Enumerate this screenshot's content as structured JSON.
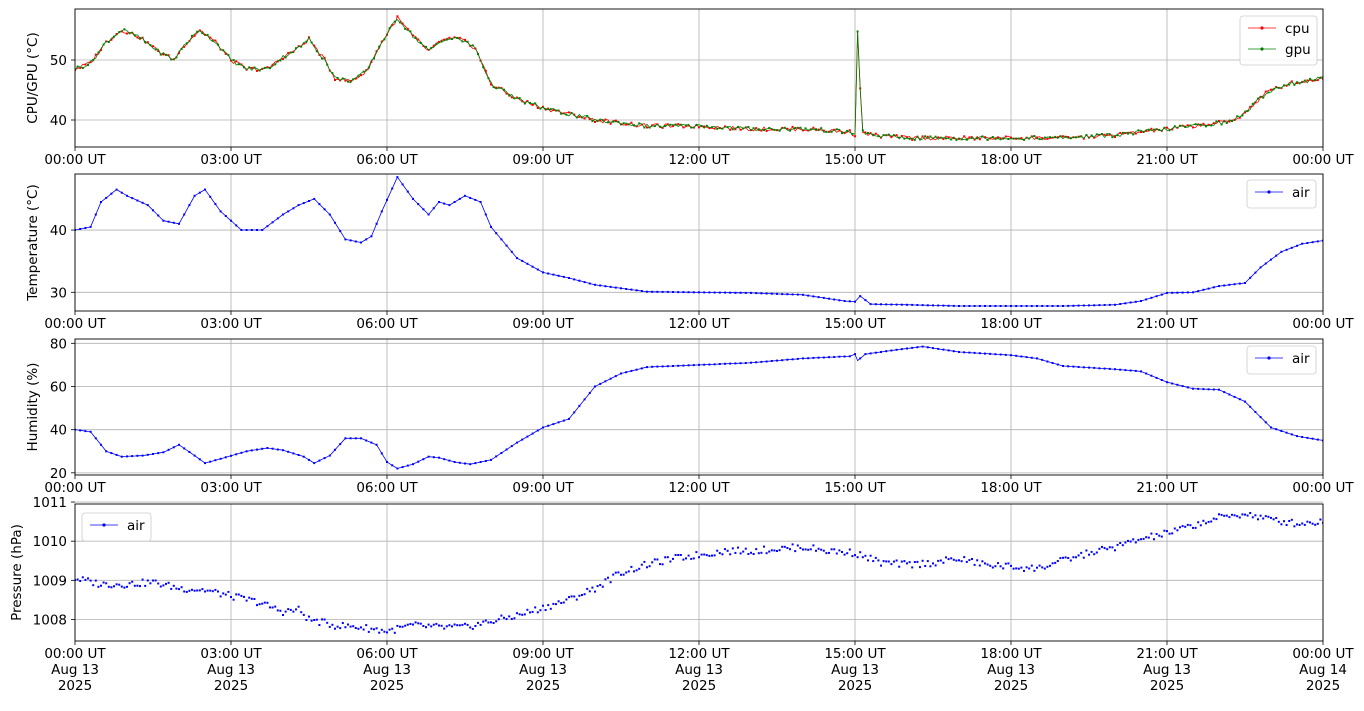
{
  "chart_data": [
    {
      "type": "line",
      "ylabel": "CPU/GPU (°C)",
      "ylim": [
        35.5,
        58.5
      ],
      "yticks": [
        40,
        50
      ],
      "xlim_hours": [
        0,
        24
      ],
      "xtick_labels": [
        "00:00 UT",
        "03:00 UT",
        "06:00 UT",
        "09:00 UT",
        "12:00 UT",
        "15:00 UT",
        "18:00 UT",
        "21:00 UT",
        "00:00 UT"
      ],
      "grid": true,
      "legend_position": "upper right",
      "series": [
        {
          "name": "cpu",
          "color": "#ff0000",
          "x_hours": [
            0,
            0.3,
            0.6,
            0.9,
            1.2,
            1.6,
            1.9,
            2.1,
            2.4,
            2.7,
            3.0,
            3.3,
            3.7,
            4.0,
            4.3,
            4.5,
            4.8,
            5.0,
            5.3,
            5.6,
            5.9,
            6.2,
            6.5,
            6.8,
            7.1,
            7.4,
            7.7,
            8.0,
            8.5,
            9.0,
            9.5,
            10.0,
            10.5,
            11.0,
            12.0,
            13.0,
            14.0,
            14.9,
            15.0,
            15.05,
            15.1,
            15.15,
            15.3,
            16.0,
            17.0,
            18.0,
            19.0,
            20.0,
            20.5,
            21.0,
            21.5,
            22.0,
            22.3,
            22.6,
            22.9,
            23.3,
            23.7,
            24.0
          ],
          "values": [
            48.5,
            49.5,
            53.0,
            55.0,
            54.0,
            51.5,
            50.0,
            52.5,
            55.0,
            53.0,
            50.0,
            48.5,
            48.5,
            50.5,
            52.0,
            53.5,
            50.0,
            47.0,
            46.5,
            48.0,
            53.0,
            57.0,
            54.0,
            51.5,
            53.5,
            53.5,
            52.0,
            46.0,
            43.5,
            42.0,
            41.0,
            40.0,
            39.5,
            39.0,
            39.0,
            38.5,
            38.5,
            38.0,
            37.5,
            55.0,
            45.0,
            38.0,
            37.5,
            37.0,
            37.0,
            37.0,
            37.0,
            37.5,
            38.0,
            38.5,
            39.0,
            39.5,
            40.0,
            42.0,
            44.5,
            46.0,
            46.5,
            47.0
          ]
        },
        {
          "name": "gpu",
          "color": "#008000",
          "x_hours": [
            0,
            0.3,
            0.6,
            0.9,
            1.2,
            1.6,
            1.9,
            2.1,
            2.4,
            2.7,
            3.0,
            3.3,
            3.7,
            4.0,
            4.3,
            4.5,
            4.8,
            5.0,
            5.3,
            5.6,
            5.9,
            6.2,
            6.5,
            6.8,
            7.1,
            7.4,
            7.7,
            8.0,
            8.5,
            9.0,
            9.5,
            10.0,
            10.5,
            11.0,
            12.0,
            13.0,
            14.0,
            14.9,
            15.0,
            15.05,
            15.1,
            15.15,
            15.3,
            16.0,
            17.0,
            18.0,
            19.0,
            20.0,
            20.5,
            21.0,
            21.5,
            22.0,
            22.3,
            22.6,
            22.9,
            23.3,
            23.7,
            24.0
          ],
          "values": [
            48.5,
            49.5,
            53.0,
            55.0,
            54.0,
            51.5,
            50.0,
            52.5,
            55.0,
            53.0,
            50.0,
            48.5,
            48.5,
            50.5,
            52.0,
            53.5,
            50.0,
            47.0,
            46.5,
            48.0,
            53.0,
            57.0,
            54.0,
            51.5,
            53.5,
            53.5,
            52.0,
            46.0,
            43.5,
            42.0,
            41.0,
            40.0,
            39.5,
            39.0,
            39.0,
            38.5,
            38.5,
            38.0,
            37.5,
            55.0,
            45.0,
            38.0,
            37.5,
            37.0,
            37.0,
            37.0,
            37.0,
            37.5,
            38.0,
            38.5,
            39.0,
            39.5,
            40.0,
            42.0,
            44.5,
            46.0,
            46.5,
            47.0
          ]
        }
      ]
    },
    {
      "type": "line",
      "ylabel": "Temperature (°C)",
      "ylim": [
        27,
        49
      ],
      "yticks": [
        30,
        40
      ],
      "xlim_hours": [
        0,
        24
      ],
      "xtick_labels": [
        "00:00 UT",
        "03:00 UT",
        "06:00 UT",
        "09:00 UT",
        "12:00 UT",
        "15:00 UT",
        "18:00 UT",
        "21:00 UT",
        "00:00 UT"
      ],
      "grid": true,
      "legend_position": "upper right",
      "series": [
        {
          "name": "air",
          "color": "#0000ff",
          "x_hours": [
            0,
            0.3,
            0.5,
            0.8,
            1.0,
            1.4,
            1.7,
            2.0,
            2.3,
            2.5,
            2.8,
            3.2,
            3.6,
            4.0,
            4.3,
            4.6,
            4.9,
            5.2,
            5.5,
            5.7,
            5.9,
            6.2,
            6.5,
            6.8,
            7.0,
            7.2,
            7.5,
            7.8,
            8.0,
            8.5,
            9.0,
            9.5,
            10.0,
            11.0,
            12.0,
            13.0,
            14.0,
            14.8,
            15.0,
            15.1,
            15.3,
            16.0,
            17.0,
            18.0,
            19.0,
            20.0,
            20.5,
            21.0,
            21.5,
            22.0,
            22.5,
            22.8,
            23.2,
            23.6,
            24.0
          ],
          "values": [
            40.0,
            40.5,
            44.5,
            46.5,
            45.5,
            44.0,
            41.5,
            41.0,
            45.5,
            46.5,
            43.0,
            40.0,
            40.0,
            42.5,
            44.0,
            45.0,
            42.5,
            38.5,
            38.0,
            39.0,
            43.0,
            48.5,
            45.0,
            42.5,
            44.5,
            44.0,
            45.5,
            44.5,
            40.5,
            35.5,
            33.2,
            32.3,
            31.2,
            30.1,
            30.0,
            29.9,
            29.6,
            28.6,
            28.5,
            29.4,
            28.1,
            28.0,
            27.8,
            27.8,
            27.8,
            28.0,
            28.6,
            29.9,
            30.0,
            31.0,
            31.5,
            34.0,
            36.5,
            37.8,
            38.3
          ]
        }
      ]
    },
    {
      "type": "line",
      "ylabel": "Humidity (%)",
      "ylim": [
        19,
        82
      ],
      "yticks": [
        20,
        40,
        60,
        80
      ],
      "xlim_hours": [
        0,
        24
      ],
      "xtick_labels": [
        "00:00 UT",
        "03:00 UT",
        "06:00 UT",
        "09:00 UT",
        "12:00 UT",
        "15:00 UT",
        "18:00 UT",
        "21:00 UT",
        "00:00 UT"
      ],
      "grid": true,
      "legend_position": "upper right",
      "series": [
        {
          "name": "air",
          "color": "#0000ff",
          "x_hours": [
            0,
            0.3,
            0.6,
            0.9,
            1.3,
            1.7,
            2.0,
            2.3,
            2.5,
            2.8,
            3.3,
            3.7,
            4.0,
            4.4,
            4.6,
            4.9,
            5.2,
            5.5,
            5.8,
            6.0,
            6.2,
            6.5,
            6.8,
            7.0,
            7.3,
            7.6,
            8.0,
            8.5,
            9.0,
            9.5,
            9.6,
            10.0,
            10.5,
            11.0,
            12.0,
            13.0,
            14.0,
            14.9,
            15.0,
            15.05,
            15.2,
            15.8,
            16.3,
            17.0,
            18.0,
            18.5,
            19.0,
            20.0,
            20.5,
            21.0,
            21.5,
            22.0,
            22.5,
            23.0,
            23.5,
            24.0
          ],
          "values": [
            40.0,
            39.0,
            30.0,
            27.5,
            28.0,
            29.5,
            33.0,
            28.0,
            24.5,
            26.5,
            30.0,
            31.5,
            30.5,
            27.5,
            24.5,
            28.0,
            36.0,
            36.0,
            33.0,
            25.0,
            22.0,
            24.0,
            27.5,
            27.0,
            25.0,
            24.0,
            26.0,
            34.0,
            41.0,
            45.0,
            48.0,
            60.0,
            66.0,
            69.0,
            70.0,
            71.0,
            73.0,
            74.0,
            75.0,
            72.0,
            75.0,
            77.0,
            78.5,
            76.0,
            74.5,
            73.0,
            69.5,
            68.0,
            67.0,
            62.0,
            59.0,
            58.5,
            53.0,
            41.0,
            37.0,
            35.0
          ]
        }
      ]
    },
    {
      "type": "scatter",
      "ylabel": "Pressure (hPa)",
      "ylim": [
        1007.45,
        1010.95
      ],
      "yticks": [
        1008,
        1009,
        1010,
        1011
      ],
      "xlim_hours": [
        0,
        24
      ],
      "xtick_labels": [
        "00:00 UT\nAug 13\n2025",
        "03:00 UT\nAug 13\n2025",
        "06:00 UT\nAug 13\n2025",
        "09:00 UT\nAug 13\n2025",
        "12:00 UT\nAug 13\n2025",
        "15:00 UT\nAug 13\n2025",
        "18:00 UT\nAug 13\n2025",
        "21:00 UT\nAug 13\n2025",
        "00:00 UT\nAug 14\n2025"
      ],
      "grid": true,
      "legend_position": "upper left",
      "series": [
        {
          "name": "air",
          "color": "#0000ff",
          "x_hours": [
            0,
            0.5,
            1.0,
            1.5,
            2.0,
            2.5,
            3.0,
            3.5,
            4.0,
            4.3,
            4.5,
            5.0,
            5.5,
            6.0,
            6.5,
            7.0,
            7.5,
            8.0,
            8.5,
            9.0,
            9.5,
            10.0,
            10.5,
            11.0,
            11.5,
            12.0,
            12.5,
            13.0,
            13.5,
            14.0,
            14.5,
            15.0,
            15.5,
            16.0,
            16.5,
            17.0,
            17.5,
            18.0,
            18.5,
            19.0,
            19.5,
            20.0,
            20.5,
            21.0,
            21.5,
            22.0,
            22.5,
            23.0,
            23.5,
            24.0
          ],
          "values": [
            1009.05,
            1008.9,
            1008.9,
            1008.95,
            1008.8,
            1008.75,
            1008.6,
            1008.45,
            1008.2,
            1008.25,
            1008.0,
            1007.85,
            1007.8,
            1007.7,
            1007.85,
            1007.8,
            1007.8,
            1007.95,
            1008.1,
            1008.3,
            1008.5,
            1008.8,
            1009.2,
            1009.4,
            1009.55,
            1009.65,
            1009.75,
            1009.75,
            1009.8,
            1009.85,
            1009.75,
            1009.7,
            1009.45,
            1009.4,
            1009.45,
            1009.55,
            1009.4,
            1009.35,
            1009.3,
            1009.5,
            1009.7,
            1009.85,
            1010.05,
            1010.2,
            1010.4,
            1010.6,
            1010.7,
            1010.55,
            1010.45,
            1010.5
          ]
        }
      ]
    }
  ]
}
